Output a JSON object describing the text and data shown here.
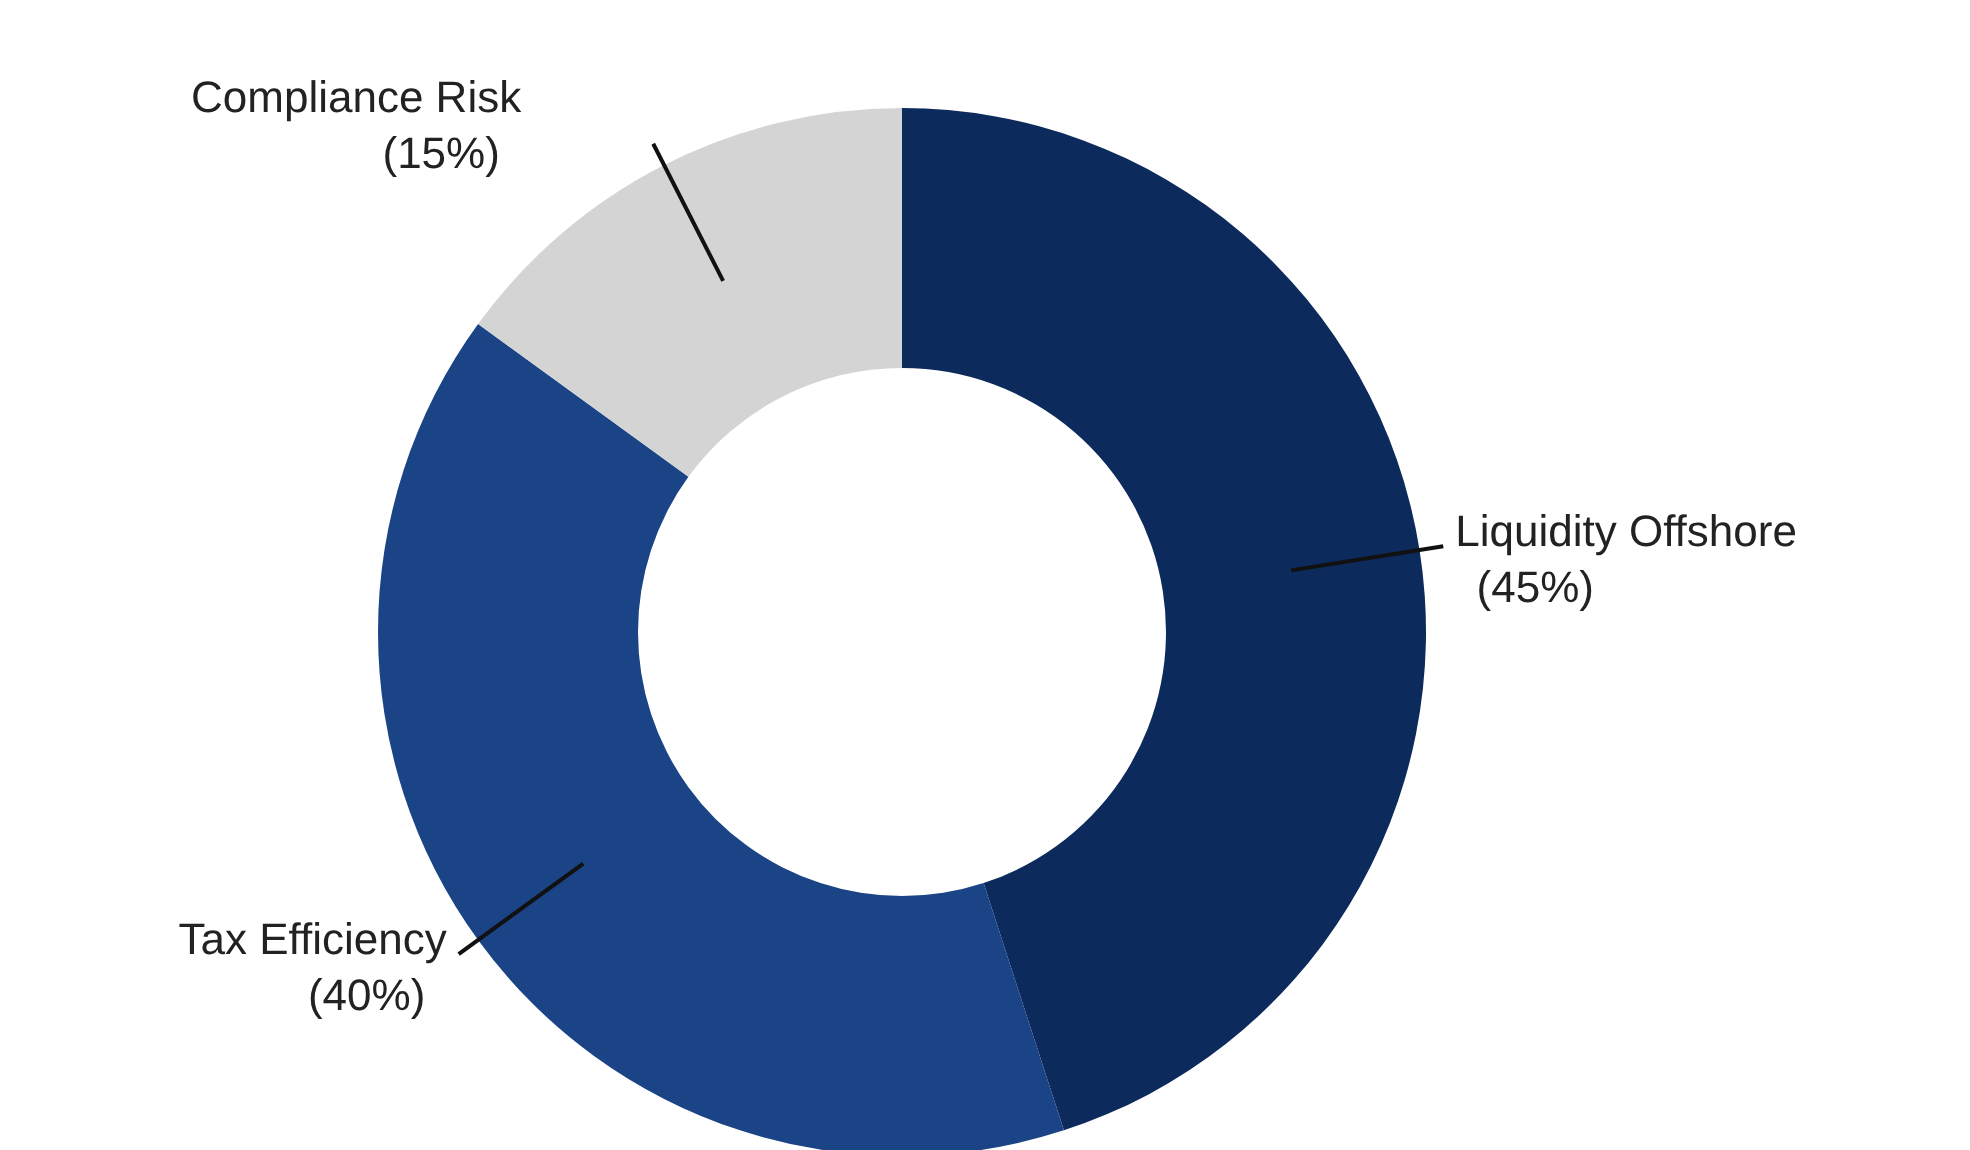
{
  "chart_data": {
    "type": "donut",
    "categories": [
      "Liquidity Offshore",
      "Tax Efficiency",
      "Compliance Risk"
    ],
    "values": [
      45,
      40,
      15
    ],
    "colors": [
      "#0c2a5b",
      "#1a4485",
      "#d4d4d4"
    ],
    "value_labels": [
      "(45%)",
      "(40%)",
      "(15%)"
    ],
    "legend": false
  }
}
